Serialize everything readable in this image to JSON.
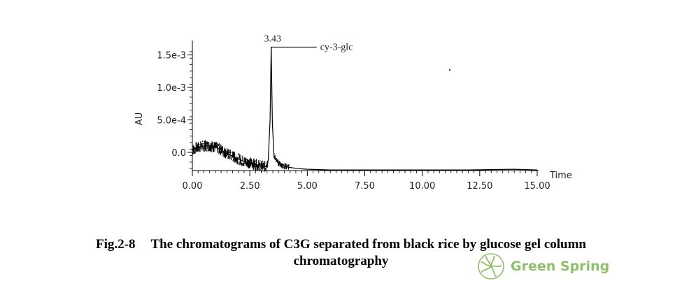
{
  "chart_data": {
    "type": "line",
    "xlabel": "Time",
    "ylabel": "AU",
    "xlim": [
      0,
      15
    ],
    "ylim": [
      -0.00028,
      0.0017
    ],
    "x_ticks": [
      "0.00",
      "2.50",
      "5.00",
      "7.50",
      "10.00",
      "12.50",
      "15.00"
    ],
    "y_ticks": [
      "0.0",
      "5.0e-4",
      "1.0e-3",
      "1.5e-3"
    ],
    "annotations": [
      {
        "x": 3.43,
        "y": 0.00162,
        "label": "3.43",
        "compound": "cy-3-glc"
      }
    ],
    "series": [
      {
        "x": [
          0,
          0.25,
          0.5,
          0.75,
          1.0,
          1.25,
          1.5,
          1.75,
          2.0,
          2.25,
          2.5,
          2.75,
          3.0,
          3.2,
          3.3,
          3.38,
          3.43,
          3.48,
          3.55,
          3.7,
          3.9,
          4.2,
          4.6,
          5.0,
          6.0,
          8.0,
          10.0,
          12.0,
          14.0,
          15.0
        ],
        "y": [
          4e-05,
          8e-05,
          0.0001,
          0.0001,
          8e-05,
          4e-05,
          -2e-05,
          -6e-05,
          -0.0001,
          -0.00014,
          -0.00016,
          -0.00019,
          -0.00021,
          -0.00022,
          -0.00012,
          0.0005,
          0.00162,
          0.00045,
          -5e-05,
          -0.00015,
          -0.0002,
          -0.00023,
          -0.00025,
          -0.00026,
          -0.00027,
          -0.00027,
          -0.00027,
          -0.00027,
          -0.00026,
          -0.00027
        ]
      }
    ]
  },
  "caption": {
    "prefix": "Fig.2-8",
    "line1": "The chromatograms of C3G separated from black rice by glucose gel column",
    "line2": "chromatography"
  },
  "watermark": {
    "text": "Green Spring",
    "icon": "flower-logo-icon",
    "color": "#8fbf6a"
  }
}
